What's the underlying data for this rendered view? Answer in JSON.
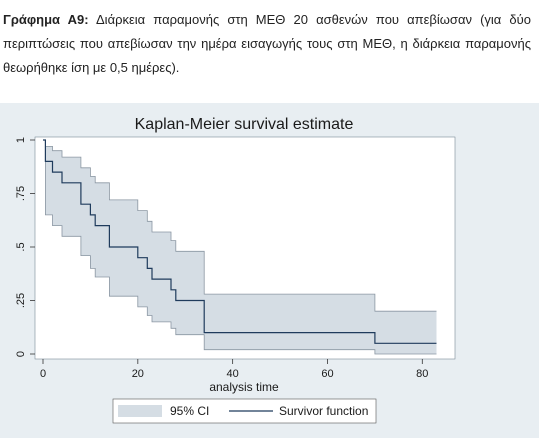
{
  "caption": {
    "label": "Γράφημα Α9:",
    "text": " Διάρκεια παραμονής στη ΜΕΘ 20 ασθενών που απεβίωσαν (για δύο περιπτώσεις που απεβίωσαν την ημέρα εισαγωγής τους στη ΜΕΘ, η διάρκεια παραμονής θεωρήθηκε ίση με 0,5 ημέρες)."
  },
  "chart_data": {
    "type": "line",
    "title": "Kaplan-Meier survival estimate",
    "xlabel": "analysis time",
    "ylabel": "",
    "xlim": [
      0,
      85
    ],
    "ylim": [
      0,
      1
    ],
    "xticks": [
      "0",
      "20",
      "40",
      "60",
      "80"
    ],
    "xtick_values": [
      0,
      20,
      40,
      60,
      80
    ],
    "yticks": [
      "0",
      ".25",
      ".5",
      ".75",
      "1"
    ],
    "ytick_values": [
      0,
      0.25,
      0.5,
      0.75,
      1
    ],
    "grid": false,
    "legend_placement": "bottom",
    "series": [
      {
        "name": "Survivor function",
        "step": true,
        "color": "#1f3b5c",
        "x": [
          0,
          0.5,
          2,
          4,
          8,
          10,
          11,
          14,
          20,
          22,
          23,
          27,
          28,
          34,
          70,
          83
        ],
        "y": [
          1,
          0.9,
          0.85,
          0.8,
          0.7,
          0.65,
          0.6,
          0.5,
          0.45,
          0.4,
          0.35,
          0.3,
          0.25,
          0.1,
          0.05,
          0.05
        ]
      }
    ],
    "ci": {
      "name": "95% CI",
      "color": "#d5dde4",
      "x": [
        0,
        0.5,
        2,
        4,
        8,
        10,
        11,
        14,
        20,
        22,
        23,
        27,
        28,
        34,
        70,
        83
      ],
      "lower": [
        1,
        0.65,
        0.6,
        0.55,
        0.46,
        0.4,
        0.36,
        0.27,
        0.22,
        0.18,
        0.15,
        0.12,
        0.09,
        0.02,
        0.0,
        0.0
      ],
      "upper": [
        1,
        0.97,
        0.95,
        0.92,
        0.87,
        0.83,
        0.8,
        0.72,
        0.67,
        0.62,
        0.57,
        0.53,
        0.48,
        0.28,
        0.2,
        0.2
      ]
    }
  }
}
